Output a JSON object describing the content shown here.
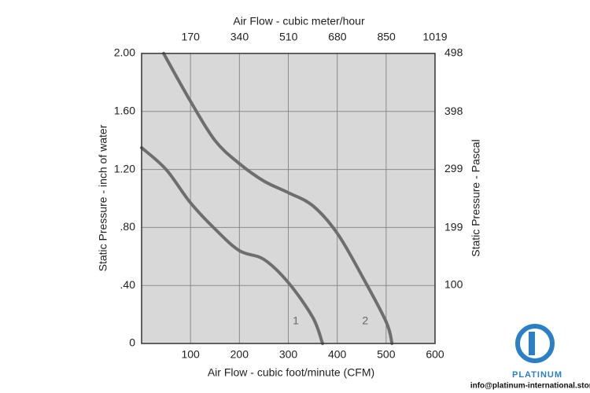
{
  "chart_data": {
    "type": "line",
    "x_label": "Air Flow - cubic foot/minute (CFM)",
    "x2_label": "Air Flow - cubic meter/hour",
    "y_label": "Static Pressure - inch of water",
    "y2_label": "Static Pressure - Pascal",
    "xlim": [
      0,
      600
    ],
    "xticks": [
      100,
      200,
      300,
      400,
      500,
      600
    ],
    "x2lim": [
      0,
      1019
    ],
    "x2ticks": [
      170,
      340,
      510,
      680,
      850,
      1019
    ],
    "ylim": [
      0,
      2
    ],
    "yticks": [
      0,
      {
        "value": 0.4,
        "label": ".40"
      },
      {
        "value": 0.8,
        "label": ".80"
      },
      {
        "value": 1.2,
        "label": "1.20"
      },
      {
        "value": 1.6,
        "label": "1.60"
      },
      {
        "value": 2,
        "label": "2.00"
      }
    ],
    "y2lim": [
      0,
      498
    ],
    "y2ticks": [
      100,
      199,
      299,
      398,
      498
    ],
    "grid": true,
    "series": [
      {
        "name": "1",
        "color": "#6e6e6e",
        "x": [
          0,
          50,
          100,
          150,
          200,
          250,
          300,
          350,
          370
        ],
        "values": [
          1.35,
          1.2,
          0.97,
          0.79,
          0.64,
          0.58,
          0.42,
          0.18,
          0
        ]
      },
      {
        "name": "2",
        "color": "#6e6e6e",
        "x": [
          45,
          100,
          150,
          200,
          250,
          300,
          350,
          400,
          450,
          500,
          512
        ],
        "values": [
          2.0,
          1.67,
          1.4,
          1.24,
          1.12,
          1.04,
          0.95,
          0.76,
          0.47,
          0.15,
          0
        ]
      }
    ]
  },
  "logo": {
    "name": "PLATINUM",
    "email": "info@platinum-international.store"
  }
}
